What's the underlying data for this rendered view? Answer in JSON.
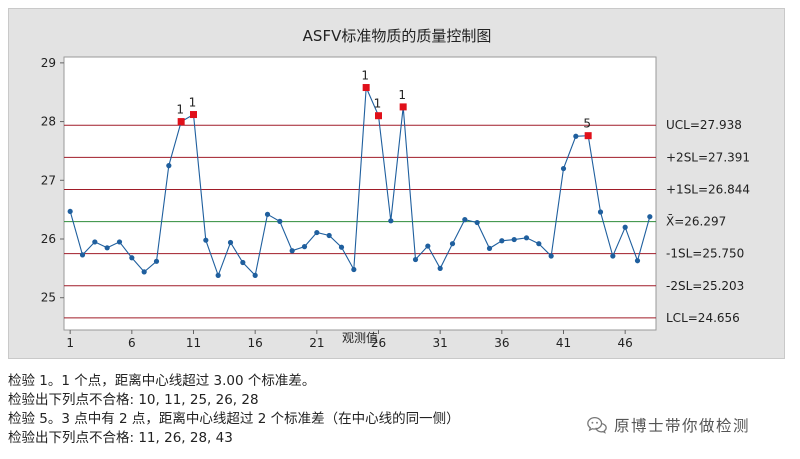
{
  "chart_data": {
    "type": "line",
    "title": "ASFV标准物质的质量控制图",
    "xlabel": "观测值",
    "ylabel": "",
    "x_ticks": [
      1,
      6,
      11,
      16,
      21,
      26,
      31,
      36,
      41,
      46
    ],
    "y_ticks": [
      25,
      26,
      27,
      28,
      29
    ],
    "xlim": [
      0.5,
      48.5
    ],
    "ylim": [
      24.45,
      29.1
    ],
    "grid": false,
    "x": [
      1,
      2,
      3,
      4,
      5,
      6,
      7,
      8,
      9,
      10,
      11,
      12,
      13,
      14,
      15,
      16,
      17,
      18,
      19,
      20,
      21,
      22,
      23,
      24,
      25,
      26,
      27,
      28,
      29,
      30,
      31,
      32,
      33,
      34,
      35,
      36,
      37,
      38,
      39,
      40,
      41,
      42,
      43,
      44,
      45,
      46,
      47,
      48
    ],
    "values": [
      26.47,
      25.73,
      25.95,
      25.85,
      25.95,
      25.68,
      25.44,
      25.62,
      27.25,
      28.0,
      28.12,
      25.98,
      25.38,
      25.94,
      25.6,
      25.38,
      26.42,
      26.3,
      25.8,
      25.87,
      26.11,
      26.06,
      25.86,
      25.48,
      28.58,
      28.1,
      26.31,
      28.25,
      25.65,
      25.88,
      25.5,
      25.92,
      26.33,
      26.28,
      25.84,
      25.97,
      25.99,
      26.02,
      25.92,
      25.71,
      27.2,
      27.75,
      27.76,
      26.46,
      25.71,
      26.2,
      25.63,
      26.38
    ],
    "failures": [
      {
        "x": 10,
        "label": "1"
      },
      {
        "x": 11,
        "label": "1"
      },
      {
        "x": 25,
        "label": "1"
      },
      {
        "x": 26,
        "label": "1"
      },
      {
        "x": 28,
        "label": "1"
      },
      {
        "x": 43,
        "label": "5"
      }
    ],
    "limits": [
      {
        "name": "UCL",
        "value": 27.938,
        "label": "UCL=27.938",
        "color": "#a01c28"
      },
      {
        "name": "+2SL",
        "value": 27.391,
        "label": "+2SL=27.391",
        "color": "#a01c28"
      },
      {
        "name": "+1SL",
        "value": 26.844,
        "label": "+1SL=26.844",
        "color": "#a01c28"
      },
      {
        "name": "center",
        "value": 26.297,
        "label": "X̄=26.297",
        "color": "#2e8b3a"
      },
      {
        "name": "-1SL",
        "value": 25.75,
        "label": "-1SL=25.750",
        "color": "#a01c28"
      },
      {
        "name": "-2SL",
        "value": 25.203,
        "label": "-2SL=25.203",
        "color": "#a01c28"
      },
      {
        "name": "LCL",
        "value": 24.656,
        "label": "LCL=24.656",
        "color": "#a01c28"
      }
    ],
    "colors": {
      "series": "#1f5f9e",
      "point": "#1f5f9e",
      "failure": "#e0101a",
      "plot_bg": "#ffffff",
      "panel_bg": "#e3e3e3"
    }
  },
  "notes": {
    "test1_title": "检验 1。1 个点，距离中心线超过 3.00 个标准差。",
    "test1_fail": "检验出下列点不合格:  10, 11, 25, 26, 28",
    "test5_title": "检验 5。3 点中有 2 点，距离中心线超过 2 个标准差（在中心线的同一侧）",
    "test5_fail": "检验出下列点不合格:  11, 26, 28, 43"
  },
  "watermark": {
    "text": "原博士带你做检测",
    "icon": "wechat-bubble-icon"
  }
}
